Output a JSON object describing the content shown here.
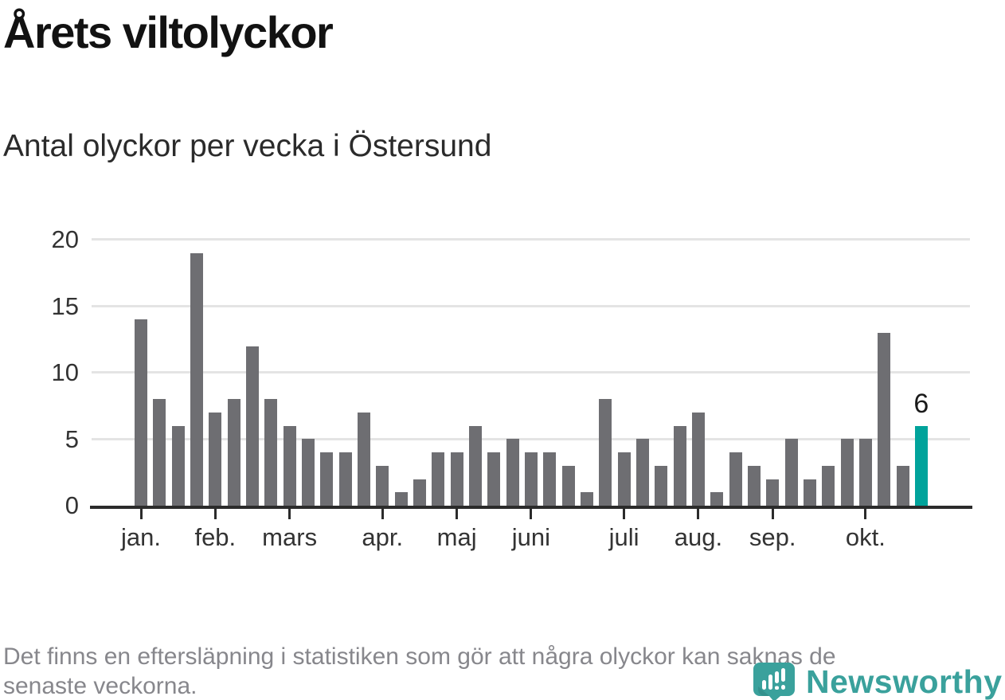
{
  "header": {
    "title": "Årets viltolyckor",
    "subtitle": "Antal olyckor per vecka i Östersund"
  },
  "chart_data": {
    "type": "bar",
    "title": "Årets viltolyckor",
    "subtitle": "Antal olyckor per vecka i Östersund",
    "x_unit": "vecka (en stapel per vecka, januari–oktober)",
    "values": [
      14,
      8,
      6,
      19,
      7,
      8,
      12,
      8,
      6,
      5,
      4,
      4,
      7,
      3,
      1,
      2,
      4,
      4,
      6,
      4,
      5,
      4,
      4,
      3,
      1,
      8,
      4,
      5,
      3,
      6,
      7,
      1,
      4,
      3,
      2,
      5,
      2,
      3,
      5,
      5,
      13,
      3,
      6
    ],
    "highlight_index": 42,
    "annotation": {
      "text": "6",
      "bar_index": 42
    },
    "x_ticks": [
      {
        "label": "jan.",
        "bar_index": 0
      },
      {
        "label": "feb.",
        "bar_index": 4
      },
      {
        "label": "mars",
        "bar_index": 8
      },
      {
        "label": "apr.",
        "bar_index": 13
      },
      {
        "label": "maj",
        "bar_index": 17
      },
      {
        "label": "juni",
        "bar_index": 21
      },
      {
        "label": "juli",
        "bar_index": 26
      },
      {
        "label": "aug.",
        "bar_index": 30
      },
      {
        "label": "sep.",
        "bar_index": 34
      },
      {
        "label": "okt.",
        "bar_index": 39
      }
    ],
    "y_ticks": [
      0,
      5,
      10,
      15,
      20
    ],
    "ylim": [
      0,
      20
    ],
    "grid": "horizontal",
    "legend": "none",
    "colors": {
      "bar": "#6e6e72",
      "highlight": "#00a39b",
      "axis": "#2b2b2b",
      "gridline": "#e4e4e4",
      "labels": "#333333"
    }
  },
  "footer": {
    "note_lines": [
      "Det finns en eftersläpning i statistiken som gör att några olyckor kan saknas de",
      "senaste veckorna."
    ],
    "logo": {
      "text": "Newsworthy",
      "color": "#3aa19c",
      "icon": "newsworthy-pin-barchart-icon"
    }
  }
}
